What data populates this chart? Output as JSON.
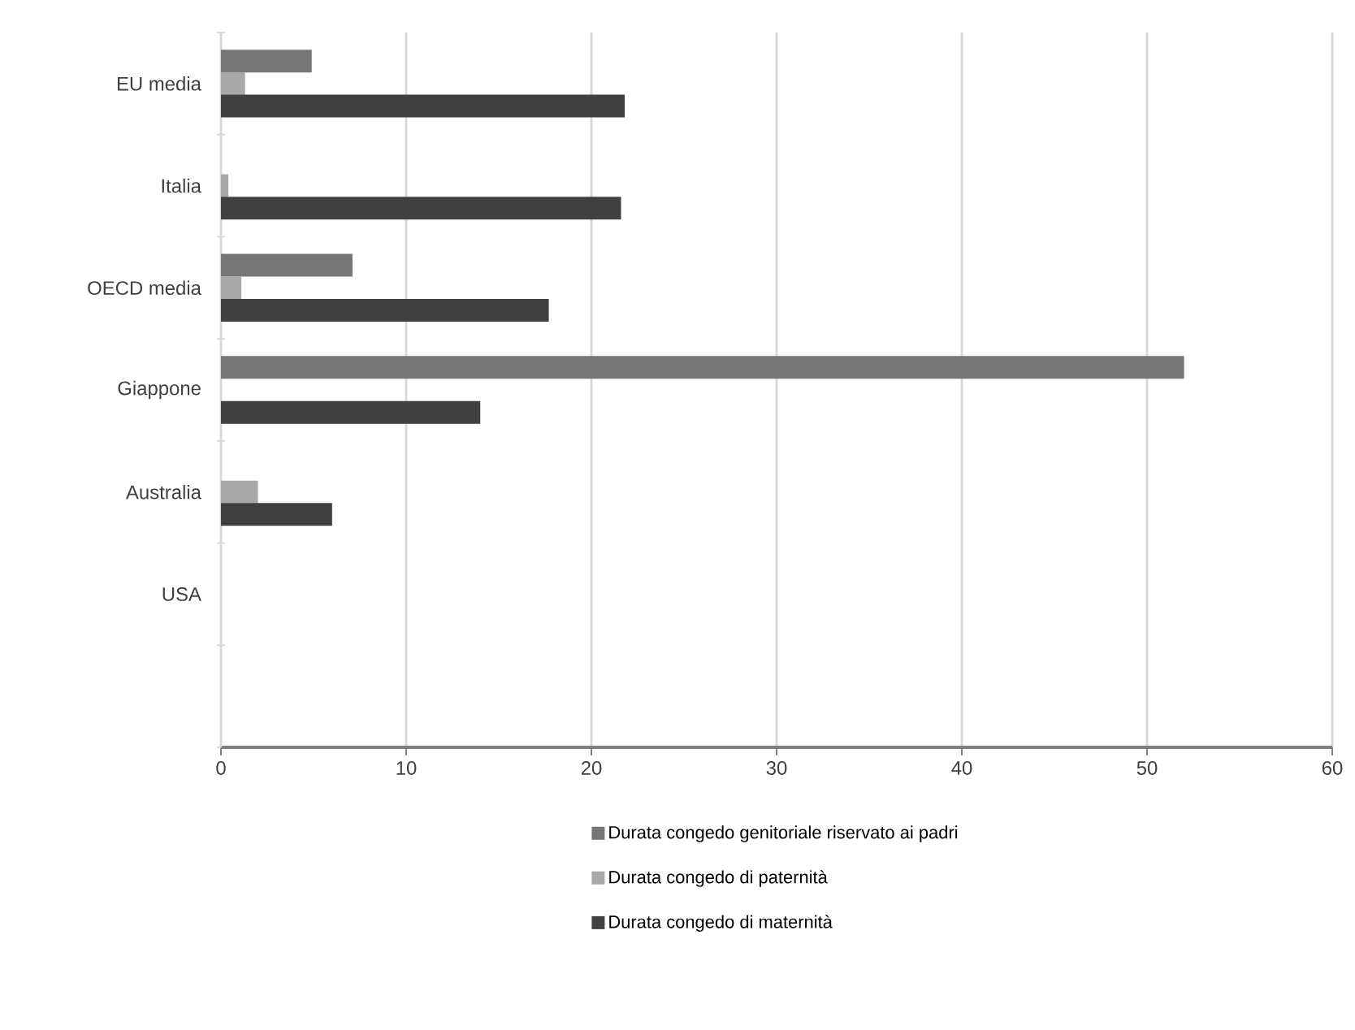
{
  "chart_data": {
    "type": "bar",
    "orientation": "horizontal",
    "categories": [
      "EU media",
      "Italia",
      "OECD media",
      "Giappone",
      "Australia",
      "USA",
      null
    ],
    "series": [
      {
        "name": "Durata congedo genitoriale  riservato ai padri",
        "color": "#767676",
        "values": [
          4.9,
          0,
          7.1,
          52,
          0,
          0,
          null
        ]
      },
      {
        "name": "Durata congedo di paternità",
        "color": "#a9a9a9",
        "values": [
          1.3,
          0.4,
          1.1,
          0,
          2,
          0,
          null
        ]
      },
      {
        "name": "Durata congedo di maternità",
        "color": "#404040",
        "values": [
          21.8,
          21.6,
          17.7,
          14,
          6,
          0,
          null
        ]
      }
    ],
    "xlim": [
      0,
      60
    ],
    "xticks": [
      0,
      10,
      20,
      30,
      40,
      50,
      60
    ],
    "grid": "x",
    "legend": "bottom"
  }
}
